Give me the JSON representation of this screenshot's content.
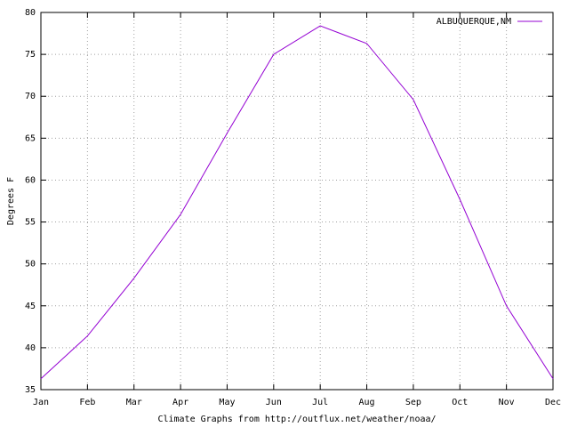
{
  "chart_data": {
    "type": "line",
    "y_label": "Degrees F",
    "x_label": "Climate Graphs from http://outflux.net/weather/noaa/",
    "categories": [
      "Jan",
      "Feb",
      "Mar",
      "Apr",
      "May",
      "Jun",
      "Jul",
      "Aug",
      "Sep",
      "Oct",
      "Nov",
      "Dec"
    ],
    "series": [
      {
        "name": "ALBUQUERQUE,NM",
        "color": "#9400d3",
        "values": [
          36.3,
          41.4,
          48.3,
          55.9,
          65.6,
          75.0,
          78.4,
          76.3,
          69.6,
          57.7,
          45.0,
          36.3
        ]
      }
    ],
    "ylim": [
      35,
      80
    ],
    "yticks": [
      35,
      40,
      45,
      50,
      55,
      60,
      65,
      70,
      75,
      80
    ],
    "grid": true,
    "legend_position": "top-right"
  }
}
